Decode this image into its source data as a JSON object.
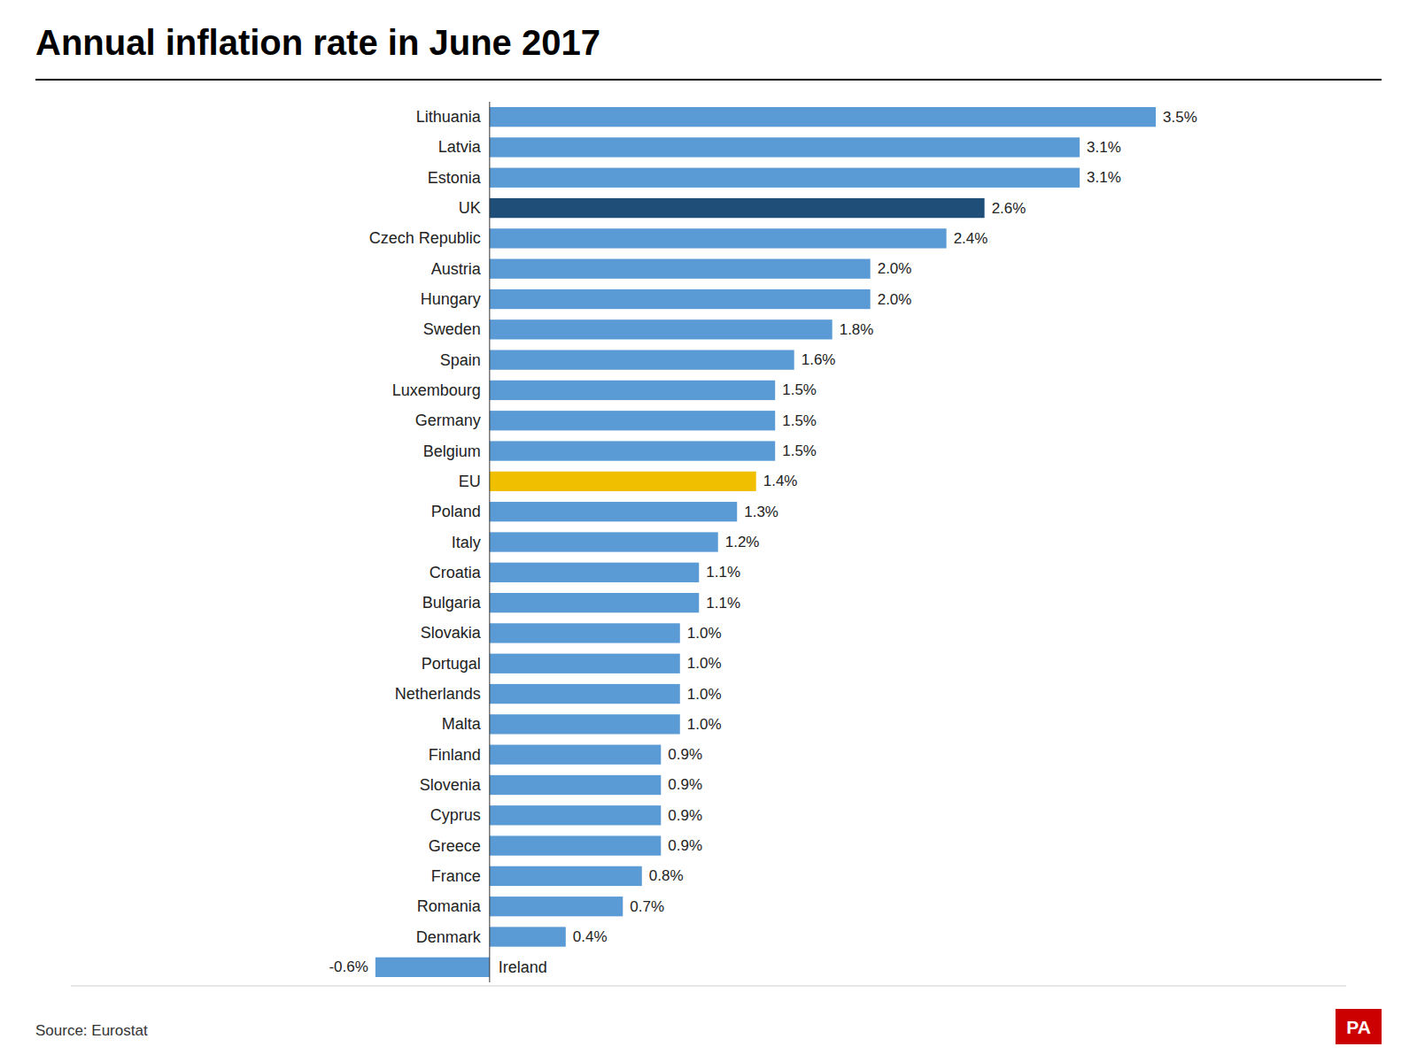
{
  "chart_data": {
    "type": "bar",
    "orientation": "horizontal",
    "title": "Annual inflation rate in June 2017",
    "categories": [
      "Lithuania",
      "Latvia",
      "Estonia",
      "UK",
      "Czech Republic",
      "Austria",
      "Hungary",
      "Sweden",
      "Spain",
      "Luxembourg",
      "Germany",
      "Belgium",
      "EU",
      "Poland",
      "Italy",
      "Croatia",
      "Bulgaria",
      "Slovakia",
      "Portugal",
      "Netherlands",
      "Malta",
      "Finland",
      "Slovenia",
      "Cyprus",
      "Greece",
      "France",
      "Romania",
      "Denmark",
      "Ireland"
    ],
    "values": [
      3.5,
      3.1,
      3.1,
      2.6,
      2.4,
      2.0,
      2.0,
      1.8,
      1.6,
      1.5,
      1.5,
      1.5,
      1.4,
      1.3,
      1.2,
      1.1,
      1.1,
      1.0,
      1.0,
      1.0,
      1.0,
      0.9,
      0.9,
      0.9,
      0.9,
      0.8,
      0.7,
      0.4,
      -0.6
    ],
    "value_labels": [
      "3.5%",
      "3.1%",
      "3.1%",
      "2.6%",
      "2.4%",
      "2.0%",
      "2.0%",
      "1.8%",
      "1.6%",
      "1.5%",
      "1.5%",
      "1.5%",
      "1.4%",
      "1.3%",
      "1.2%",
      "1.1%",
      "1.1%",
      "1.0%",
      "1.0%",
      "1.0%",
      "1.0%",
      "0.9%",
      "0.9%",
      "0.9%",
      "0.9%",
      "0.8%",
      "0.7%",
      "0.4%",
      "-0.6%"
    ],
    "colors": [
      "#5b9bd5",
      "#5b9bd5",
      "#5b9bd5",
      "#1f4e79",
      "#5b9bd5",
      "#5b9bd5",
      "#5b9bd5",
      "#5b9bd5",
      "#5b9bd5",
      "#5b9bd5",
      "#5b9bd5",
      "#5b9bd5",
      "#f0c000",
      "#5b9bd5",
      "#5b9bd5",
      "#5b9bd5",
      "#5b9bd5",
      "#5b9bd5",
      "#5b9bd5",
      "#5b9bd5",
      "#5b9bd5",
      "#5b9bd5",
      "#5b9bd5",
      "#5b9bd5",
      "#5b9bd5",
      "#5b9bd5",
      "#5b9bd5",
      "#5b9bd5",
      "#5b9bd5"
    ],
    "xlim": [
      -2.2,
      4.5
    ],
    "data_labels": true,
    "tick_labels": false,
    "grid": false,
    "annotations": [
      {
        "text": "Source: Eurostat"
      },
      {
        "text": "PA"
      }
    ]
  }
}
